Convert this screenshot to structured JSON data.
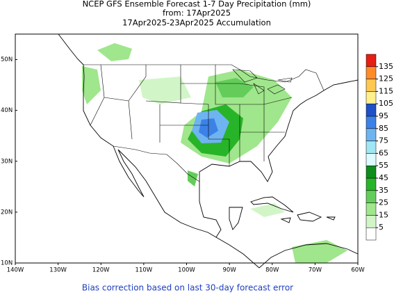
{
  "header": {
    "title": "NCEP GFS Ensemble Forecast 1-7 Day Precipitation (mm)",
    "from": "from: 17Apr2025",
    "period": "17Apr2025-23Apr2025 Accumulation"
  },
  "map": {
    "lon_range": [
      -140,
      -60
    ],
    "lat_range": [
      10,
      55
    ],
    "lon_ticks": [
      {
        "value": -140,
        "label": "140W"
      },
      {
        "value": -130,
        "label": "130W"
      },
      {
        "value": -120,
        "label": "120W"
      },
      {
        "value": -110,
        "label": "110W"
      },
      {
        "value": -100,
        "label": "100W"
      },
      {
        "value": -90,
        "label": "90W"
      },
      {
        "value": -80,
        "label": "80W"
      },
      {
        "value": -70,
        "label": "70W"
      },
      {
        "value": -60,
        "label": "60W"
      }
    ],
    "lat_ticks": [
      {
        "value": 10,
        "label": "10N"
      },
      {
        "value": 20,
        "label": "20N"
      },
      {
        "value": 30,
        "label": "30N"
      },
      {
        "value": 40,
        "label": "40N"
      },
      {
        "value": 50,
        "label": "50N"
      }
    ]
  },
  "legend": {
    "levels": [
      5,
      15,
      25,
      35,
      45,
      55,
      65,
      75,
      85,
      95,
      105,
      115,
      125,
      135
    ],
    "colors": [
      "#ffffff",
      "#d2f5c8",
      "#a0e68c",
      "#64cd5a",
      "#28b428",
      "#0f8c1e",
      "#dcfaff",
      "#a0e6f5",
      "#6eb4f0",
      "#3c82e6",
      "#1e50c8",
      "#fff08c",
      "#ffc850",
      "#ff8c28",
      "#e61e14"
    ]
  },
  "footer": "Bias correction based on last 30-day forecast error"
}
